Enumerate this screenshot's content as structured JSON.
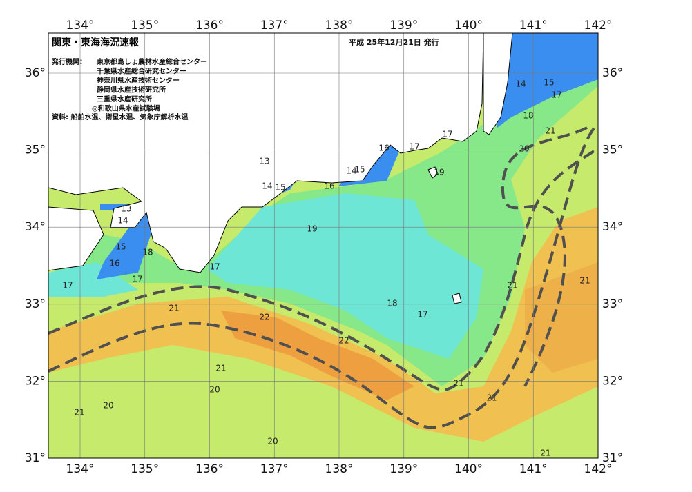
{
  "map": {
    "title": "関東・東海海況速報",
    "date": "平成 25年12月21日 発行",
    "issuer_label": "発行機関：",
    "issuers": [
      "東京都島しょ農林水産総合センター",
      "千葉県水産総合研究センター",
      "神奈川県水産技術センター",
      "静岡県水産技術研究所",
      "三重県水産研究所",
      "◎和歌山県水産試験場"
    ],
    "source": "資料: 船舶水温、衛星水温、気象庁解析水温",
    "lon_ticks": [
      "134°",
      "135°",
      "136°",
      "137°",
      "138°",
      "139°",
      "140°",
      "141°",
      "142°"
    ],
    "lat_ticks": [
      "36°",
      "35°",
      "34°",
      "33°",
      "32°",
      "31°"
    ],
    "contour_labels": [
      13,
      14,
      15,
      16,
      17,
      18,
      17,
      21,
      17,
      13,
      14,
      15,
      16,
      19,
      22,
      22,
      18,
      17,
      14,
      15,
      16,
      17,
      19,
      17,
      14,
      15,
      17,
      18,
      21,
      20,
      21,
      21,
      21,
      21,
      21,
      21,
      20,
      20,
      21,
      20
    ]
  }
}
